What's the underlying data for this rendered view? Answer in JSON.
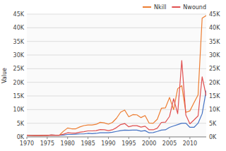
{
  "chart_data": {
    "type": "line",
    "ylabel": "Value",
    "x": [
      1970,
      1971,
      1972,
      1973,
      1974,
      1975,
      1976,
      1977,
      1978,
      1979,
      1980,
      1981,
      1982,
      1983,
      1984,
      1985,
      1986,
      1987,
      1988,
      1989,
      1990,
      1991,
      1992,
      1993,
      1994,
      1995,
      1996,
      1997,
      1998,
      1999,
      2000,
      2001,
      2002,
      2003,
      2004,
      2005,
      2006,
      2007,
      2008,
      2009,
      2010,
      2011,
      2012,
      2013,
      2014
    ],
    "series": [
      {
        "color": "#4472C4",
        "values": [
          639,
          514,
          507,
          472,
          544,
          560,
          658,
          622,
          635,
          700,
          900,
          900,
          1000,
          1100,
          1100,
          1300,
          1200,
          1300,
          1500,
          1500,
          1500,
          1700,
          2000,
          2300,
          2500,
          2400,
          2500,
          2500,
          2100,
          2300,
          1500,
          1600,
          2000,
          2500,
          2600,
          3500,
          4000,
          4500,
          5000,
          5000,
          3500,
          3500,
          5000,
          8500,
          17000
        ]
      },
      {
        "name": "Nkill",
        "color": "#ED7D31",
        "values": [
          639,
          514,
          507,
          472,
          544,
          560,
          658,
          622,
          635,
          2099,
          3263,
          2966,
          2966,
          3648,
          4141,
          4368,
          4373,
          4604,
          5339,
          5132,
          4667,
          5302,
          6850,
          9044,
          9829,
          7374,
          8157,
          8081,
          7073,
          7823,
          5037,
          5023,
          6462,
          10481,
          10644,
          14443,
          10000,
          17685,
          18765,
          9000,
          9532,
          12533,
          15386,
          43512,
          44490
        ]
      },
      {
        "name": "Nwound",
        "color": "#E05050",
        "values": [
          639,
          514,
          507,
          472,
          544,
          560,
          658,
          622,
          635,
          1000,
          1500,
          1400,
          1400,
          1700,
          1900,
          2200,
          2200,
          2300,
          2700,
          2600,
          2300,
          2600,
          3400,
          4500,
          4900,
          3700,
          4100,
          4100,
          3600,
          3900,
          2600,
          2600,
          3200,
          5300,
          5400,
          7500,
          14000,
          8500,
          28000,
          8000,
          4800,
          6200,
          7700,
          22000,
          15000
        ]
      }
    ],
    "xlim": [
      1970,
      2014
    ],
    "xticks": [
      1970,
      1975,
      1980,
      1985,
      1990,
      1995,
      2000,
      2005,
      2010
    ],
    "ylim": [
      0,
      45000
    ],
    "yticks": [
      {
        "value": 0,
        "label": "0K"
      },
      {
        "value": 5000,
        "label": "5K"
      },
      {
        "value": 10000,
        "label": "10K"
      },
      {
        "value": 15000,
        "label": "15K"
      },
      {
        "value": 20000,
        "label": "20K"
      },
      {
        "value": 25000,
        "label": "25K"
      },
      {
        "value": 30000,
        "label": "30K"
      },
      {
        "value": 35000,
        "label": "35K"
      },
      {
        "value": 40000,
        "label": "40K"
      },
      {
        "value": 45000,
        "label": "45K"
      }
    ],
    "y2lim": [
      0,
      45000
    ],
    "y2ticks": [
      {
        "value": 0,
        "label": "0K"
      },
      {
        "value": 5000,
        "label": "5K"
      },
      {
        "value": 10000,
        "label": "10K"
      },
      {
        "value": 15000,
        "label": "15K"
      },
      {
        "value": 20000,
        "label": "20K"
      },
      {
        "value": 25000,
        "label": "25K"
      },
      {
        "value": 30000,
        "label": "30K"
      },
      {
        "value": 35000,
        "label": "35K"
      },
      {
        "value": 40000,
        "label": "40K"
      },
      {
        "value": 45000,
        "label": "45K"
      }
    ],
    "grid": true,
    "legend": "upper-right"
  }
}
